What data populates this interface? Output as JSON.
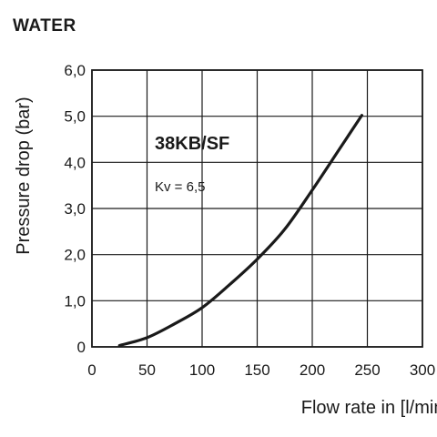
{
  "page_title": "WATER",
  "colors": {
    "line": "#1a1a1a",
    "grid": "#1a1a1a",
    "background": "#ffffff"
  },
  "chart_data": {
    "type": "line",
    "title": "",
    "xlabel": "Flow rate in [l/min]",
    "ylabel": "Pressure drop (bar)",
    "xlim": [
      0,
      300
    ],
    "ylim": [
      0,
      6
    ],
    "x_ticks": [
      0,
      50,
      100,
      150,
      200,
      250,
      300
    ],
    "x_tick_labels": [
      "0",
      "50",
      "100",
      "150",
      "200",
      "250",
      "300"
    ],
    "y_ticks": [
      0,
      1,
      2,
      3,
      4,
      5,
      6
    ],
    "y_tick_labels": [
      "0",
      "1,0",
      "2,0",
      "3,0",
      "4,0",
      "5,0",
      "6,0"
    ],
    "grid": true,
    "annotations": [
      {
        "text": "38KB/SF",
        "style": "bold"
      },
      {
        "text": "Kv = 6,5",
        "style": "normal"
      }
    ],
    "series": [
      {
        "x": [
          25,
          50,
          75,
          100,
          125,
          150,
          175,
          200,
          225,
          245
        ],
        "y": [
          0.03,
          0.2,
          0.5,
          0.85,
          1.35,
          1.9,
          2.55,
          3.4,
          4.3,
          5.02
        ]
      }
    ]
  }
}
